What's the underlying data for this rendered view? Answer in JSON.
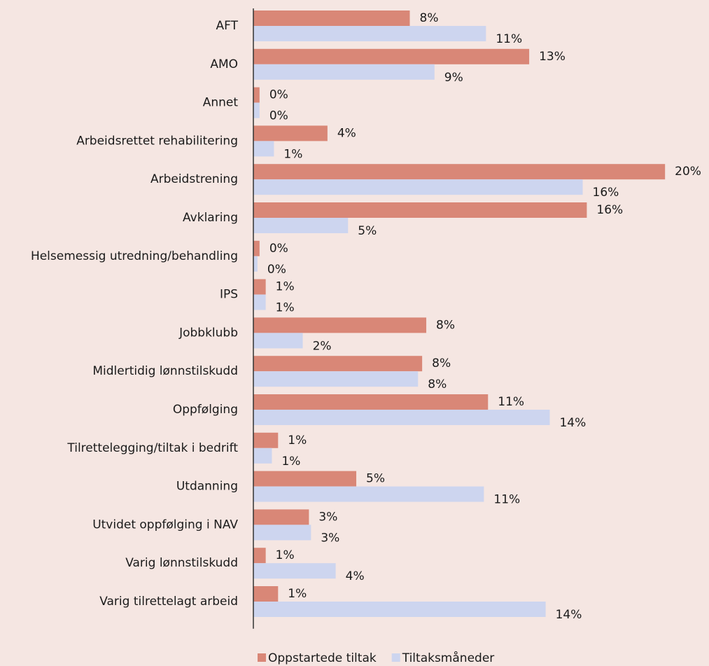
{
  "chart_data": {
    "type": "barh",
    "categories": [
      "AFT",
      "AMO",
      "Annet",
      "Arbeidsrettet rehabilitering",
      "Arbeidstrening",
      "Avklaring",
      "Helsemessig utredning/behandling",
      "IPS",
      "Jobbklubb",
      "Midlertidig lønnstilskudd",
      "Oppfølging",
      "Tilrettelegging/tiltak i bedrift",
      "Utdanning",
      "Utvidet oppfølging i NAV",
      "Varig lønnstilskudd",
      "Varig tilrettelagt arbeid"
    ],
    "series": [
      {
        "name": "Oppstartede tiltak",
        "color": "#d98777",
        "values": [
          7.6,
          13.4,
          0.3,
          3.6,
          20.0,
          16.2,
          0.3,
          0.6,
          8.4,
          8.2,
          11.4,
          1.2,
          5.0,
          2.7,
          0.6,
          1.2
        ],
        "value_labels": [
          "8%",
          "13%",
          "0%",
          "4%",
          "20%",
          "16%",
          "0%",
          "1%",
          "8%",
          "8%",
          "11%",
          "1%",
          "5%",
          "3%",
          "1%",
          "1%"
        ]
      },
      {
        "name": "Tiltaksmåneder",
        "color": "#cdd5ef",
        "values": [
          11.3,
          8.8,
          0.3,
          1.0,
          16.0,
          4.6,
          0.2,
          0.6,
          2.4,
          8.0,
          14.4,
          0.9,
          11.2,
          2.8,
          4.0,
          14.2
        ],
        "value_labels": [
          "11%",
          "9%",
          "0%",
          "1%",
          "16%",
          "5%",
          "0%",
          "1%",
          "2%",
          "8%",
          "14%",
          "1%",
          "11%",
          "3%",
          "4%",
          "14%"
        ]
      }
    ],
    "xlim": [
      0,
      22
    ],
    "legend": "bottom"
  }
}
